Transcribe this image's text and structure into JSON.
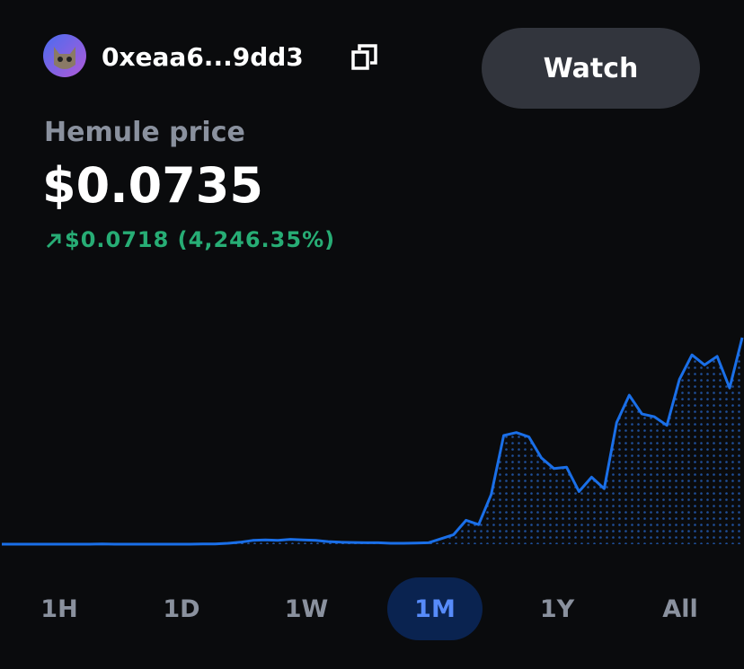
{
  "header": {
    "address": "0xeaa6...9dd3",
    "button": "Watch"
  },
  "price": {
    "label": "Hemule price",
    "value": "$0.0735",
    "change": "$0.0718 (4,246.35%)"
  },
  "chart_data": {
    "type": "line",
    "color": "#1a6fe8",
    "values": [
      0.0017,
      0.0017,
      0.0017,
      0.0017,
      0.0017,
      0.0017,
      0.0017,
      0.0017,
      0.0018,
      0.0017,
      0.0017,
      0.0017,
      0.0017,
      0.0017,
      0.0017,
      0.0017,
      0.0018,
      0.0018,
      0.002,
      0.0024,
      0.003,
      0.0032,
      0.003,
      0.0034,
      0.0032,
      0.003,
      0.0026,
      0.0024,
      0.0023,
      0.0022,
      0.0022,
      0.002,
      0.002,
      0.0021,
      0.0022,
      0.0036,
      0.005,
      0.01,
      0.0085,
      0.019,
      0.0395,
      0.0405,
      0.039,
      0.0317,
      0.028,
      0.0285,
      0.02,
      0.025,
      0.021,
      0.044,
      0.0535,
      0.047,
      0.046,
      0.043,
      0.059,
      0.0675,
      0.064,
      0.067,
      0.056,
      0.0735
    ]
  },
  "tabs": {
    "items": [
      "1H",
      "1D",
      "1W",
      "1M",
      "1Y",
      "All"
    ],
    "selected": 3
  }
}
